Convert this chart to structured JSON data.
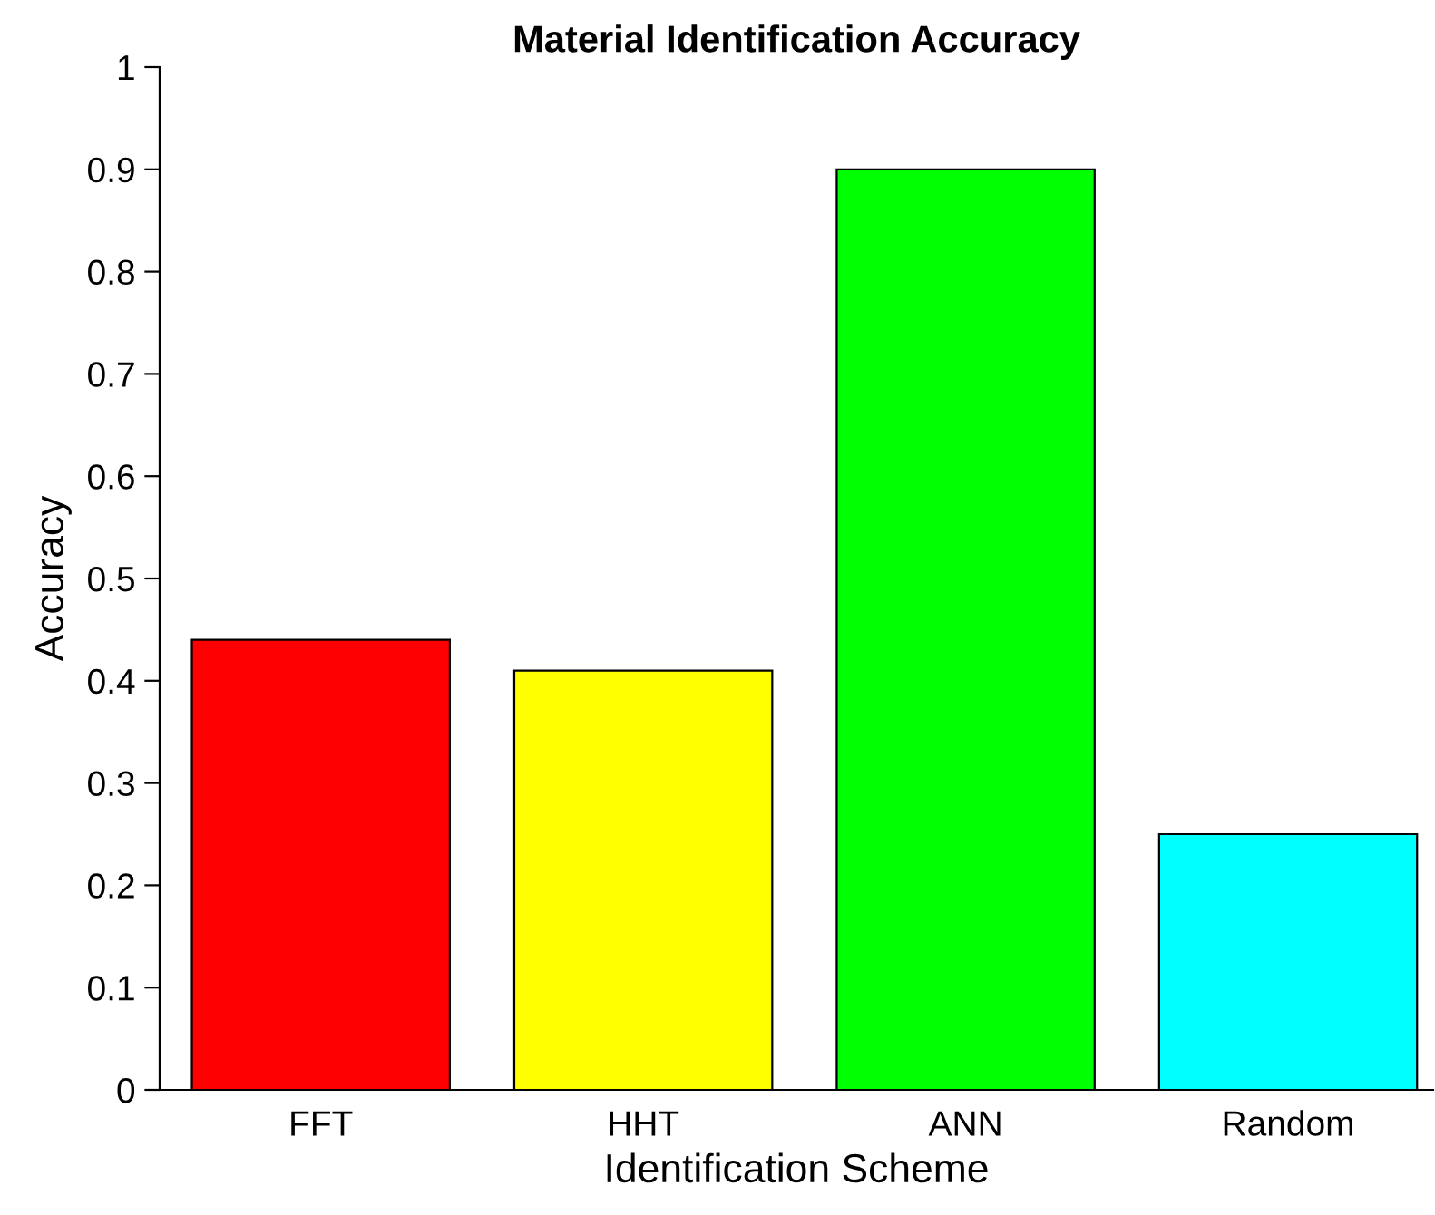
{
  "chart_data": {
    "type": "bar",
    "title": "Material Identification Accuracy",
    "xlabel": "Identification Scheme",
    "ylabel": "Accuracy",
    "categories": [
      "FFT",
      "HHT",
      "ANN",
      "Random"
    ],
    "values": [
      0.44,
      0.41,
      0.9,
      0.25
    ],
    "colors": [
      "#ff0000",
      "#ffff00",
      "#00ff00",
      "#00ffff"
    ],
    "ylim": [
      0,
      1
    ],
    "yticks": [
      0,
      0.1,
      0.2,
      0.3,
      0.4,
      0.5,
      0.6,
      0.7,
      0.8,
      0.9,
      1
    ],
    "grid": false,
    "legend": false
  }
}
